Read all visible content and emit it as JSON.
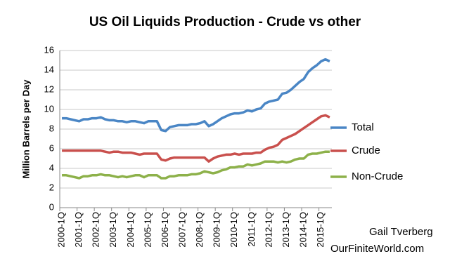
{
  "chart_data": {
    "type": "line",
    "title": "US Oil Liquids Production - Crude vs other",
    "y_label": "Million Barrels per Day",
    "annotations": [
      "Gail Tverberg",
      "OurFiniteWorld.com"
    ],
    "categories": [
      "2000-1Q",
      null,
      null,
      null,
      "2001-1Q",
      null,
      null,
      null,
      "2002-1Q",
      null,
      null,
      null,
      "2003-1Q",
      null,
      null,
      null,
      "2004-1Q",
      null,
      null,
      null,
      "2005-1Q",
      null,
      null,
      null,
      "2006-1Q",
      null,
      null,
      null,
      "2007-1Q",
      null,
      null,
      null,
      "2008-1Q",
      null,
      null,
      null,
      "2009-1Q",
      null,
      null,
      null,
      "2010-1Q",
      null,
      null,
      null,
      "2011-1Q",
      null,
      null,
      null,
      "2012-1Q",
      null,
      null,
      null,
      "2013-1Q",
      null,
      null,
      null,
      "2014-1Q",
      null,
      null,
      null,
      "2015-1Q",
      null,
      null
    ],
    "series": [
      {
        "name": "Total",
        "color": "#4a86c5",
        "values": [
          9.1,
          9.1,
          9.0,
          8.9,
          8.8,
          9.0,
          9.0,
          9.1,
          9.1,
          9.2,
          9.0,
          8.9,
          8.9,
          8.8,
          8.8,
          8.7,
          8.8,
          8.8,
          8.7,
          8.6,
          8.8,
          8.8,
          8.8,
          7.9,
          7.8,
          8.2,
          8.3,
          8.4,
          8.4,
          8.4,
          8.5,
          8.5,
          8.6,
          8.8,
          8.3,
          8.5,
          8.8,
          9.1,
          9.3,
          9.5,
          9.6,
          9.6,
          9.7,
          9.9,
          9.8,
          10.0,
          10.1,
          10.6,
          10.8,
          10.9,
          11.0,
          11.6,
          11.7,
          12.0,
          12.4,
          12.8,
          13.1,
          13.8,
          14.2,
          14.5,
          14.9,
          15.1,
          14.9
        ]
      },
      {
        "name": "Crude",
        "color": "#c9504d",
        "values": [
          5.8,
          5.8,
          5.8,
          5.8,
          5.8,
          5.8,
          5.8,
          5.8,
          5.8,
          5.8,
          5.7,
          5.6,
          5.7,
          5.7,
          5.6,
          5.6,
          5.6,
          5.5,
          5.4,
          5.5,
          5.5,
          5.5,
          5.5,
          4.9,
          4.8,
          5.0,
          5.1,
          5.1,
          5.1,
          5.1,
          5.1,
          5.1,
          5.1,
          5.1,
          4.7,
          5.0,
          5.2,
          5.3,
          5.4,
          5.4,
          5.5,
          5.4,
          5.5,
          5.5,
          5.5,
          5.6,
          5.6,
          5.9,
          6.1,
          6.2,
          6.4,
          6.9,
          7.1,
          7.3,
          7.5,
          7.8,
          8.1,
          8.4,
          8.7,
          9.0,
          9.3,
          9.4,
          9.2
        ]
      },
      {
        "name": "Non-Crude",
        "color": "#8db14a",
        "values": [
          3.3,
          3.3,
          3.2,
          3.1,
          3.0,
          3.2,
          3.2,
          3.3,
          3.3,
          3.4,
          3.3,
          3.3,
          3.2,
          3.1,
          3.2,
          3.1,
          3.2,
          3.3,
          3.3,
          3.1,
          3.3,
          3.3,
          3.3,
          3.0,
          3.0,
          3.2,
          3.2,
          3.3,
          3.3,
          3.3,
          3.4,
          3.4,
          3.5,
          3.7,
          3.6,
          3.5,
          3.6,
          3.8,
          3.9,
          4.1,
          4.1,
          4.2,
          4.2,
          4.4,
          4.3,
          4.4,
          4.5,
          4.7,
          4.7,
          4.7,
          4.6,
          4.7,
          4.6,
          4.7,
          4.9,
          5.0,
          5.0,
          5.4,
          5.5,
          5.5,
          5.6,
          5.7,
          5.7
        ]
      }
    ],
    "ylim": [
      0,
      16
    ],
    "yticks": [
      0,
      2,
      4,
      6,
      8,
      10,
      12,
      14,
      16
    ],
    "grid": true
  }
}
